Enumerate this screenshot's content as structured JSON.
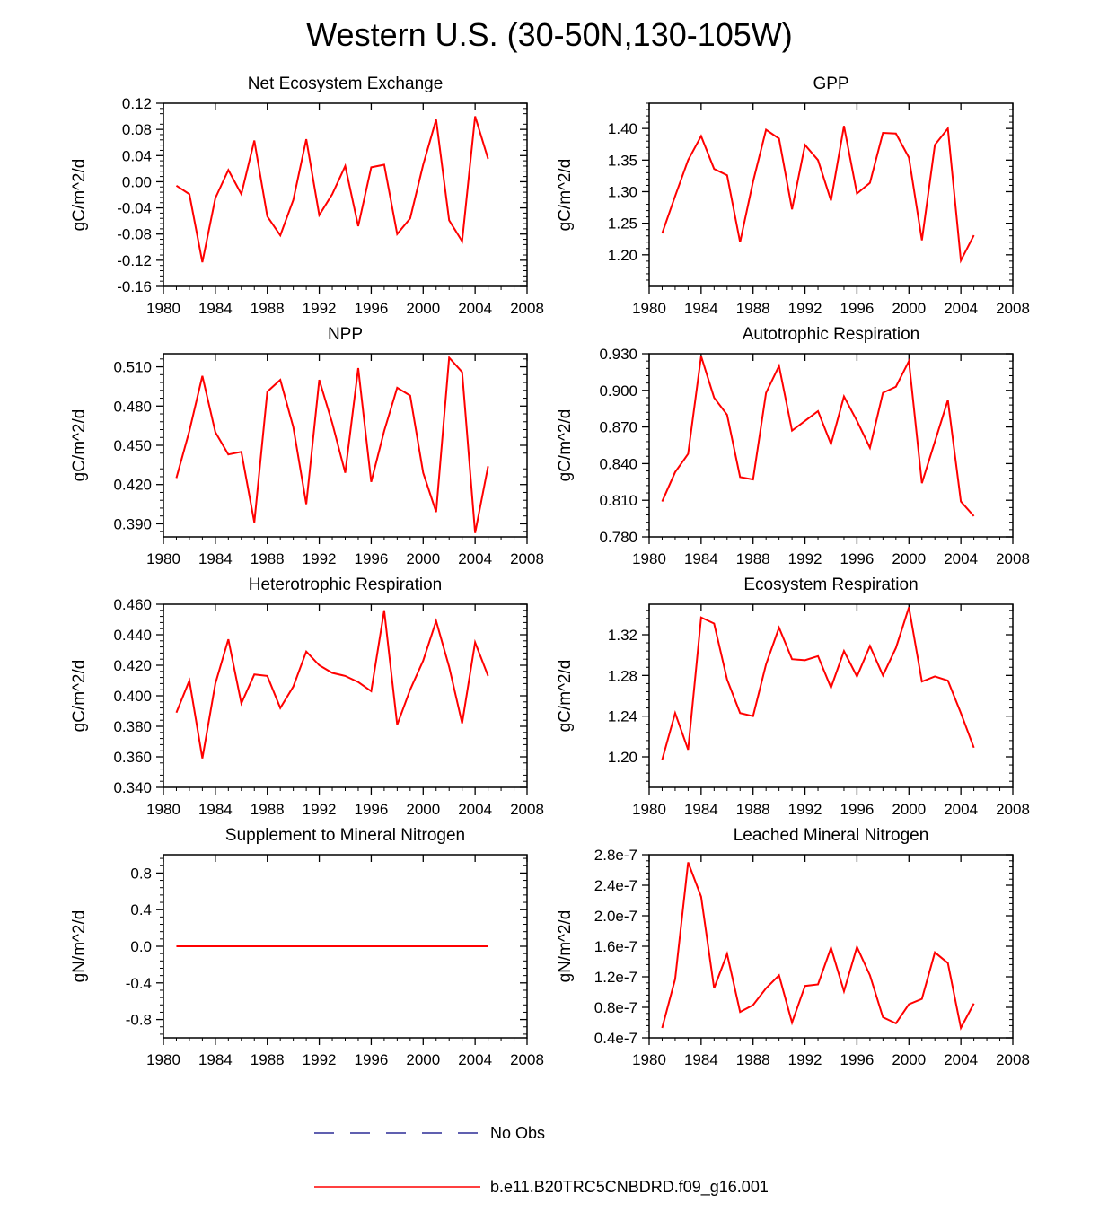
{
  "figure": {
    "title": "Western U.S. (30-50N,130-105W)",
    "legend": [
      {
        "label": "No Obs",
        "style": "dashed",
        "color": "#000080"
      },
      {
        "label": "b.e11.B20TRC5CNBDRD.f09_g16.001",
        "style": "solid",
        "color": "#ff0000"
      }
    ],
    "line_color": "#ff0000"
  },
  "chart_data": [
    {
      "type": "line",
      "title": "Net Ecosystem Exchange",
      "ylabel": "gC/m^2/d",
      "xlim": [
        1980,
        2008
      ],
      "xticks": [
        1980,
        1984,
        1988,
        1992,
        1996,
        2000,
        2004,
        2008
      ],
      "xtick_labels": [
        "1980",
        "1984",
        "1988",
        "1992",
        "1996",
        "2000",
        "2004",
        "2008"
      ],
      "ylim": [
        -0.16,
        0.12
      ],
      "yticks": [
        -0.16,
        -0.12,
        -0.08,
        -0.04,
        0.0,
        0.04,
        0.08,
        0.12
      ],
      "ytick_labels": [
        "-0.16",
        "-0.12",
        "-0.08",
        "-0.04",
        "0.00",
        "0.04",
        "0.08",
        "0.12"
      ],
      "x": [
        1981,
        1982,
        1983,
        1984,
        1985,
        1986,
        1987,
        1988,
        1989,
        1990,
        1991,
        1992,
        1993,
        1994,
        1995,
        1996,
        1997,
        1998,
        1999,
        2000,
        2001,
        2002,
        2003,
        2004,
        2005
      ],
      "y": [
        -0.006,
        -0.019,
        -0.123,
        -0.025,
        0.018,
        -0.019,
        0.063,
        -0.053,
        -0.082,
        -0.028,
        0.065,
        -0.051,
        -0.019,
        0.024,
        -0.068,
        0.022,
        0.026,
        -0.08,
        -0.056,
        0.026,
        0.095,
        -0.059,
        -0.091,
        0.1,
        0.035
      ]
    },
    {
      "type": "line",
      "title": "GPP",
      "ylabel": "gC/m^2/d",
      "xlim": [
        1980,
        2008
      ],
      "xticks": [
        1980,
        1984,
        1988,
        1992,
        1996,
        2000,
        2004,
        2008
      ],
      "xtick_labels": [
        "1980",
        "1984",
        "1988",
        "1992",
        "1996",
        "2000",
        "2004",
        "2008"
      ],
      "ylim": [
        1.15,
        1.44
      ],
      "yticks": [
        1.2,
        1.25,
        1.3,
        1.35,
        1.4
      ],
      "ytick_labels": [
        "1.20",
        "1.25",
        "1.30",
        "1.35",
        "1.40"
      ],
      "x": [
        1981,
        1982,
        1983,
        1984,
        1985,
        1986,
        1987,
        1988,
        1989,
        1990,
        1991,
        1992,
        1993,
        1994,
        1995,
        1996,
        1997,
        1998,
        1999,
        2000,
        2001,
        2002,
        2003,
        2004,
        2005
      ],
      "y": [
        1.234,
        1.293,
        1.35,
        1.388,
        1.336,
        1.326,
        1.22,
        1.316,
        1.398,
        1.384,
        1.272,
        1.374,
        1.35,
        1.286,
        1.404,
        1.297,
        1.314,
        1.393,
        1.392,
        1.354,
        1.223,
        1.374,
        1.4,
        1.191,
        1.231
      ]
    },
    {
      "type": "line",
      "title": "NPP",
      "ylabel": "gC/m^2/d",
      "xlim": [
        1980,
        2008
      ],
      "xticks": [
        1980,
        1984,
        1988,
        1992,
        1996,
        2000,
        2004,
        2008
      ],
      "xtick_labels": [
        "1980",
        "1984",
        "1988",
        "1992",
        "1996",
        "2000",
        "2004",
        "2008"
      ],
      "ylim": [
        0.38,
        0.52
      ],
      "yticks": [
        0.39,
        0.42,
        0.45,
        0.48,
        0.51
      ],
      "ytick_labels": [
        "0.390",
        "0.420",
        "0.450",
        "0.480",
        "0.510"
      ],
      "x": [
        1981,
        1982,
        1983,
        1984,
        1985,
        1986,
        1987,
        1988,
        1989,
        1990,
        1991,
        1992,
        1993,
        1994,
        1995,
        1996,
        1997,
        1998,
        1999,
        2000,
        2001,
        2002,
        2003,
        2004,
        2005
      ],
      "y": [
        0.425,
        0.461,
        0.503,
        0.46,
        0.443,
        0.445,
        0.391,
        0.491,
        0.5,
        0.464,
        0.405,
        0.5,
        0.467,
        0.429,
        0.509,
        0.422,
        0.461,
        0.494,
        0.488,
        0.429,
        0.399,
        0.517,
        0.506,
        0.383,
        0.434
      ]
    },
    {
      "type": "line",
      "title": "Autotrophic Respiration",
      "ylabel": "gC/m^2/d",
      "xlim": [
        1980,
        2008
      ],
      "xticks": [
        1980,
        1984,
        1988,
        1992,
        1996,
        2000,
        2004,
        2008
      ],
      "xtick_labels": [
        "1980",
        "1984",
        "1988",
        "1992",
        "1996",
        "2000",
        "2004",
        "2008"
      ],
      "ylim": [
        0.78,
        0.93
      ],
      "yticks": [
        0.78,
        0.81,
        0.84,
        0.87,
        0.9,
        0.93
      ],
      "ytick_labels": [
        "0.780",
        "0.810",
        "0.840",
        "0.870",
        "0.900",
        "0.930"
      ],
      "x": [
        1981,
        1982,
        1983,
        1984,
        1985,
        1986,
        1987,
        1988,
        1989,
        1990,
        1991,
        1992,
        1993,
        1994,
        1995,
        1996,
        1997,
        1998,
        1999,
        2000,
        2001,
        2002,
        2003,
        2004,
        2005
      ],
      "y": [
        0.809,
        0.833,
        0.848,
        0.928,
        0.894,
        0.88,
        0.829,
        0.827,
        0.898,
        0.92,
        0.867,
        0.875,
        0.883,
        0.856,
        0.895,
        0.875,
        0.853,
        0.898,
        0.903,
        0.924,
        0.824,
        0.858,
        0.892,
        0.809,
        0.797
      ]
    },
    {
      "type": "line",
      "title": "Heterotrophic Respiration",
      "ylabel": "gC/m^2/d",
      "xlim": [
        1980,
        2008
      ],
      "xticks": [
        1980,
        1984,
        1988,
        1992,
        1996,
        2000,
        2004,
        2008
      ],
      "xtick_labels": [
        "1980",
        "1984",
        "1988",
        "1992",
        "1996",
        "2000",
        "2004",
        "2008"
      ],
      "ylim": [
        0.34,
        0.46
      ],
      "yticks": [
        0.34,
        0.36,
        0.38,
        0.4,
        0.42,
        0.44,
        0.46
      ],
      "ytick_labels": [
        "0.340",
        "0.360",
        "0.380",
        "0.400",
        "0.420",
        "0.440",
        "0.460"
      ],
      "x": [
        1981,
        1982,
        1983,
        1984,
        1985,
        1986,
        1987,
        1988,
        1989,
        1990,
        1991,
        1992,
        1993,
        1994,
        1995,
        1996,
        1997,
        1998,
        1999,
        2000,
        2001,
        2002,
        2003,
        2004,
        2005
      ],
      "y": [
        0.389,
        0.41,
        0.359,
        0.408,
        0.437,
        0.395,
        0.414,
        0.413,
        0.392,
        0.406,
        0.429,
        0.42,
        0.415,
        0.413,
        0.409,
        0.403,
        0.456,
        0.381,
        0.404,
        0.423,
        0.449,
        0.419,
        0.382,
        0.435,
        0.413
      ]
    },
    {
      "type": "line",
      "title": "Ecosystem Respiration",
      "ylabel": "gC/m^2/d",
      "xlim": [
        1980,
        2008
      ],
      "xticks": [
        1980,
        1984,
        1988,
        1992,
        1996,
        2000,
        2004,
        2008
      ],
      "xtick_labels": [
        "1980",
        "1984",
        "1988",
        "1992",
        "1996",
        "2000",
        "2004",
        "2008"
      ],
      "ylim": [
        1.17,
        1.35
      ],
      "yticks": [
        1.2,
        1.24,
        1.28,
        1.32
      ],
      "ytick_labels": [
        "1.20",
        "1.24",
        "1.28",
        "1.32"
      ],
      "x": [
        1981,
        1982,
        1983,
        1984,
        1985,
        1986,
        1987,
        1988,
        1989,
        1990,
        1991,
        1992,
        1993,
        1994,
        1995,
        1996,
        1997,
        1998,
        1999,
        2000,
        2001,
        2002,
        2003,
        2004,
        2005
      ],
      "y": [
        1.197,
        1.243,
        1.207,
        1.337,
        1.331,
        1.276,
        1.243,
        1.24,
        1.291,
        1.327,
        1.296,
        1.295,
        1.299,
        1.268,
        1.304,
        1.279,
        1.309,
        1.28,
        1.307,
        1.347,
        1.274,
        1.279,
        1.275,
        1.243,
        1.209
      ]
    },
    {
      "type": "line",
      "title": "Supplement to Mineral Nitrogen",
      "ylabel": "gN/m^2/d",
      "xlim": [
        1980,
        2008
      ],
      "xticks": [
        1980,
        1984,
        1988,
        1992,
        1996,
        2000,
        2004,
        2008
      ],
      "xtick_labels": [
        "1980",
        "1984",
        "1988",
        "1992",
        "1996",
        "2000",
        "2004",
        "2008"
      ],
      "ylim": [
        -1.0,
        1.0
      ],
      "yticks": [
        -0.8,
        -0.4,
        0.0,
        0.4,
        0.8
      ],
      "ytick_labels": [
        "-0.8",
        "-0.4",
        "0.0",
        "0.4",
        "0.8"
      ],
      "x": [
        1981,
        1982,
        1983,
        1984,
        1985,
        1986,
        1987,
        1988,
        1989,
        1990,
        1991,
        1992,
        1993,
        1994,
        1995,
        1996,
        1997,
        1998,
        1999,
        2000,
        2001,
        2002,
        2003,
        2004,
        2005
      ],
      "y": [
        0,
        0,
        0,
        0,
        0,
        0,
        0,
        0,
        0,
        0,
        0,
        0,
        0,
        0,
        0,
        0,
        0,
        0,
        0,
        0,
        0,
        0,
        0,
        0,
        0
      ]
    },
    {
      "type": "line",
      "title": "Leached Mineral Nitrogen",
      "ylabel": "gN/m^2/d",
      "xlim": [
        1980,
        2008
      ],
      "xticks": [
        1980,
        1984,
        1988,
        1992,
        1996,
        2000,
        2004,
        2008
      ],
      "xtick_labels": [
        "1980",
        "1984",
        "1988",
        "1992",
        "1996",
        "2000",
        "2004",
        "2008"
      ],
      "ylim": [
        4e-08,
        2.8e-07
      ],
      "yticks": [
        4e-08,
        8e-08,
        1.2e-07,
        1.6e-07,
        2e-07,
        2.4e-07,
        2.8e-07
      ],
      "ytick_labels": [
        "0.4e-7",
        "0.8e-7",
        "1.2e-7",
        "1.6e-7",
        "2.0e-7",
        "2.4e-7",
        "2.8e-7"
      ],
      "x": [
        1981,
        1982,
        1983,
        1984,
        1985,
        1986,
        1987,
        1988,
        1989,
        1990,
        1991,
        1992,
        1993,
        1994,
        1995,
        1996,
        1997,
        1998,
        1999,
        2000,
        2001,
        2002,
        2003,
        2004,
        2005
      ],
      "y": [
        5.3e-08,
        1.17e-07,
        2.7e-07,
        2.25e-07,
        1.05e-07,
        1.5e-07,
        7.4e-08,
        8.3e-08,
        1.05e-07,
        1.22e-07,
        6e-08,
        1.08e-07,
        1.1e-07,
        1.58e-07,
        1.01e-07,
        1.59e-07,
        1.22e-07,
        6.7e-08,
        5.9e-08,
        8.4e-08,
        9.1e-08,
        1.52e-07,
        1.38e-07,
        5.3e-08,
        8.5e-08
      ]
    }
  ]
}
